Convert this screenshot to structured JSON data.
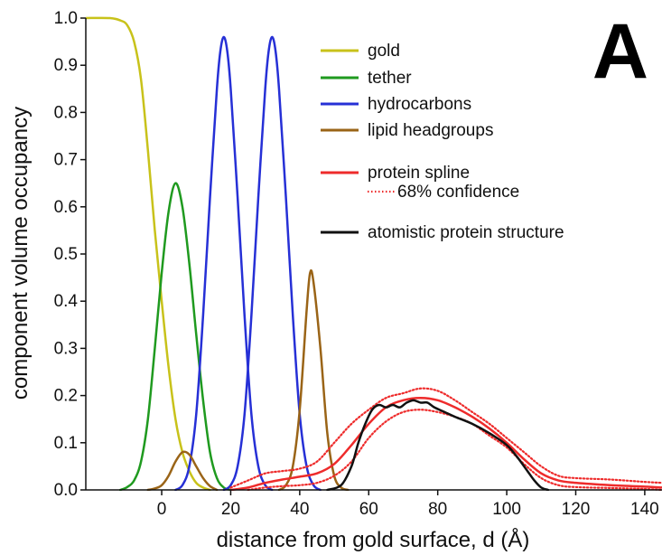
{
  "chart_data": {
    "type": "line",
    "panel_label": "A",
    "xlabel": "distance from gold surface, d  (Å)",
    "ylabel": "component volume occupancy",
    "xlim": [
      -22,
      145
    ],
    "ylim": [
      0,
      1.0
    ],
    "xticks": [
      0,
      20,
      40,
      60,
      80,
      100,
      120,
      140
    ],
    "yticks": [
      "0.0",
      "0.1",
      "0.2",
      "0.3",
      "0.4",
      "0.5",
      "0.6",
      "0.7",
      "0.8",
      "0.9",
      "1.0"
    ],
    "grid": false,
    "legend_position": "top-right",
    "legend": [
      {
        "label": "gold",
        "color": "#c8c21a",
        "style": "solid"
      },
      {
        "label": "tether",
        "color": "#1f9a1f",
        "style": "solid"
      },
      {
        "label": "hydrocarbons",
        "color": "#2630d6",
        "style": "solid"
      },
      {
        "label": "lipid headgroups",
        "color": "#9a6417",
        "style": "solid"
      },
      {
        "label": "protein spline",
        "color": "#ee2b2b",
        "style": "solid"
      },
      {
        "label": "68% confidence",
        "color": "#ee2b2b",
        "style": "dotted"
      },
      {
        "label": "atomistic protein structure",
        "color": "#111111",
        "style": "solid"
      }
    ],
    "series": [
      {
        "name": "gold",
        "color": "#c8c21a",
        "style": "solid",
        "points": [
          [
            -22,
            1.0
          ],
          [
            -15,
            1.0
          ],
          [
            -12,
            0.995
          ],
          [
            -10,
            0.985
          ],
          [
            -8,
            0.95
          ],
          [
            -6,
            0.87
          ],
          [
            -4,
            0.72
          ],
          [
            -2,
            0.55
          ],
          [
            0,
            0.4
          ],
          [
            2,
            0.26
          ],
          [
            4,
            0.15
          ],
          [
            6,
            0.08
          ],
          [
            8,
            0.04
          ],
          [
            10,
            0.015
          ],
          [
            12,
            0.005
          ],
          [
            14,
            0.0
          ]
        ]
      },
      {
        "name": "tether",
        "color": "#1f9a1f",
        "style": "solid",
        "points": [
          [
            -12,
            0.0
          ],
          [
            -10,
            0.006
          ],
          [
            -8,
            0.02
          ],
          [
            -6,
            0.06
          ],
          [
            -4,
            0.15
          ],
          [
            -2,
            0.3
          ],
          [
            0,
            0.46
          ],
          [
            2,
            0.59
          ],
          [
            4,
            0.65
          ],
          [
            6,
            0.6
          ],
          [
            8,
            0.48
          ],
          [
            10,
            0.33
          ],
          [
            12,
            0.19
          ],
          [
            14,
            0.08
          ],
          [
            16,
            0.025
          ],
          [
            18,
            0.005
          ],
          [
            20,
            0.0
          ]
        ]
      },
      {
        "name": "hydrocarbons (proximal)",
        "color": "#2630d6",
        "style": "solid",
        "points": [
          [
            4,
            0.0
          ],
          [
            6,
            0.01
          ],
          [
            8,
            0.05
          ],
          [
            10,
            0.16
          ],
          [
            12,
            0.37
          ],
          [
            14,
            0.62
          ],
          [
            16,
            0.85
          ],
          [
            17,
            0.93
          ],
          [
            18,
            0.96
          ],
          [
            19,
            0.93
          ],
          [
            20,
            0.85
          ],
          [
            22,
            0.62
          ],
          [
            24,
            0.37
          ],
          [
            26,
            0.16
          ],
          [
            28,
            0.05
          ],
          [
            30,
            0.01
          ],
          [
            32,
            0.0
          ]
        ]
      },
      {
        "name": "hydrocarbons (distal)",
        "color": "#2630d6",
        "style": "solid",
        "points": [
          [
            18,
            0.0
          ],
          [
            20,
            0.01
          ],
          [
            22,
            0.05
          ],
          [
            24,
            0.16
          ],
          [
            26,
            0.37
          ],
          [
            28,
            0.62
          ],
          [
            30,
            0.85
          ],
          [
            31,
            0.93
          ],
          [
            32,
            0.96
          ],
          [
            33,
            0.93
          ],
          [
            34,
            0.85
          ],
          [
            36,
            0.62
          ],
          [
            38,
            0.37
          ],
          [
            40,
            0.16
          ],
          [
            42,
            0.05
          ],
          [
            44,
            0.01
          ],
          [
            46,
            0.0
          ]
        ]
      },
      {
        "name": "lipid headgroups (proximal)",
        "color": "#9a6417",
        "style": "solid",
        "points": [
          [
            -4,
            0.0
          ],
          [
            -2,
            0.003
          ],
          [
            0,
            0.01
          ],
          [
            2,
            0.03
          ],
          [
            4,
            0.06
          ],
          [
            6,
            0.08
          ],
          [
            8,
            0.075
          ],
          [
            10,
            0.05
          ],
          [
            12,
            0.025
          ],
          [
            14,
            0.008
          ],
          [
            16,
            0.0
          ]
        ]
      },
      {
        "name": "lipid headgroups (distal)",
        "color": "#9a6417",
        "style": "solid",
        "points": [
          [
            34,
            0.0
          ],
          [
            36,
            0.01
          ],
          [
            38,
            0.05
          ],
          [
            40,
            0.17
          ],
          [
            42,
            0.38
          ],
          [
            43,
            0.46
          ],
          [
            44,
            0.44
          ],
          [
            46,
            0.3
          ],
          [
            48,
            0.12
          ],
          [
            50,
            0.03
          ],
          [
            52,
            0.005
          ],
          [
            54,
            0.0
          ]
        ]
      },
      {
        "name": "protein spline",
        "color": "#ee2b2b",
        "style": "solid",
        "points": [
          [
            20,
            0.0
          ],
          [
            25,
            0.005
          ],
          [
            30,
            0.015
          ],
          [
            35,
            0.022
          ],
          [
            40,
            0.028
          ],
          [
            45,
            0.035
          ],
          [
            50,
            0.055
          ],
          [
            55,
            0.095
          ],
          [
            60,
            0.14
          ],
          [
            65,
            0.175
          ],
          [
            70,
            0.19
          ],
          [
            75,
            0.195
          ],
          [
            80,
            0.19
          ],
          [
            85,
            0.175
          ],
          [
            90,
            0.155
          ],
          [
            95,
            0.13
          ],
          [
            100,
            0.1
          ],
          [
            105,
            0.065
          ],
          [
            110,
            0.035
          ],
          [
            115,
            0.02
          ],
          [
            120,
            0.015
          ],
          [
            130,
            0.01
          ],
          [
            140,
            0.007
          ],
          [
            145,
            0.005
          ]
        ]
      },
      {
        "name": "68% confidence (upper)",
        "color": "#ee2b2b",
        "style": "dotted",
        "points": [
          [
            20,
            0.005
          ],
          [
            25,
            0.02
          ],
          [
            30,
            0.035
          ],
          [
            35,
            0.04
          ],
          [
            40,
            0.045
          ],
          [
            45,
            0.06
          ],
          [
            50,
            0.1
          ],
          [
            55,
            0.14
          ],
          [
            60,
            0.17
          ],
          [
            65,
            0.195
          ],
          [
            70,
            0.205
          ],
          [
            75,
            0.215
          ],
          [
            80,
            0.21
          ],
          [
            85,
            0.19
          ],
          [
            90,
            0.165
          ],
          [
            95,
            0.14
          ],
          [
            100,
            0.11
          ],
          [
            105,
            0.08
          ],
          [
            110,
            0.05
          ],
          [
            115,
            0.03
          ],
          [
            120,
            0.025
          ],
          [
            130,
            0.022
          ],
          [
            140,
            0.017
          ],
          [
            145,
            0.015
          ]
        ]
      },
      {
        "name": "68% confidence (lower)",
        "color": "#ee2b2b",
        "style": "dotted",
        "points": [
          [
            25,
            0.0
          ],
          [
            30,
            0.005
          ],
          [
            35,
            0.008
          ],
          [
            40,
            0.01
          ],
          [
            45,
            0.015
          ],
          [
            50,
            0.03
          ],
          [
            55,
            0.06
          ],
          [
            60,
            0.11
          ],
          [
            65,
            0.145
          ],
          [
            70,
            0.165
          ],
          [
            75,
            0.17
          ],
          [
            80,
            0.165
          ],
          [
            85,
            0.155
          ],
          [
            90,
            0.14
          ],
          [
            95,
            0.115
          ],
          [
            100,
            0.09
          ],
          [
            105,
            0.055
          ],
          [
            110,
            0.025
          ],
          [
            115,
            0.01
          ],
          [
            120,
            0.006
          ],
          [
            130,
            0.004
          ],
          [
            140,
            0.002
          ],
          [
            145,
            0.0
          ]
        ]
      },
      {
        "name": "atomistic protein structure",
        "color": "#111111",
        "style": "solid",
        "points": [
          [
            48,
            0.0
          ],
          [
            52,
            0.01
          ],
          [
            55,
            0.05
          ],
          [
            57,
            0.1
          ],
          [
            59,
            0.14
          ],
          [
            61,
            0.17
          ],
          [
            63,
            0.18
          ],
          [
            65,
            0.175
          ],
          [
            67,
            0.18
          ],
          [
            69,
            0.175
          ],
          [
            71,
            0.185
          ],
          [
            73,
            0.19
          ],
          [
            75,
            0.185
          ],
          [
            77,
            0.185
          ],
          [
            79,
            0.175
          ],
          [
            82,
            0.165
          ],
          [
            85,
            0.155
          ],
          [
            90,
            0.14
          ],
          [
            95,
            0.12
          ],
          [
            100,
            0.095
          ],
          [
            103,
            0.07
          ],
          [
            106,
            0.04
          ],
          [
            108,
            0.02
          ],
          [
            110,
            0.005
          ],
          [
            112,
            0.0
          ]
        ]
      }
    ]
  }
}
